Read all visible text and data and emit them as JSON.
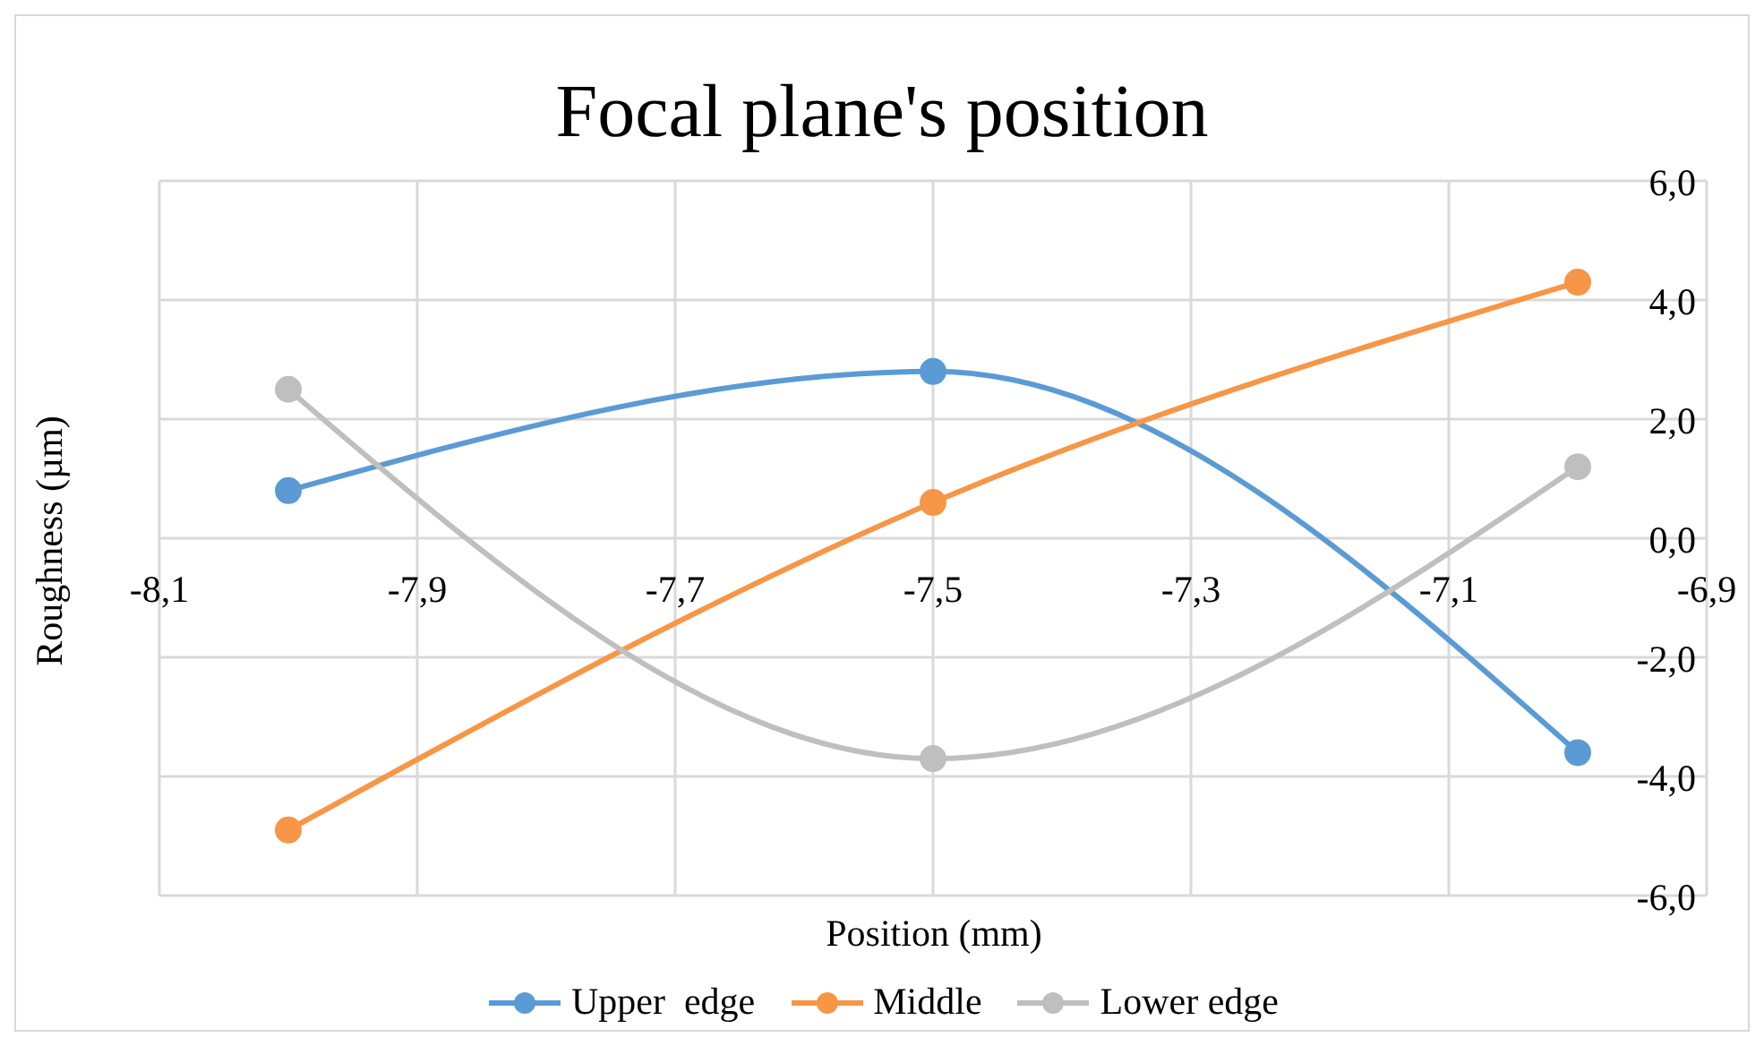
{
  "chart_data": {
    "type": "line",
    "title": "Focal plane's position",
    "xlabel": "Position (mm)",
    "ylabel": "Roughness (µm)",
    "x": [
      -8.0,
      -7.5,
      -7.0
    ],
    "series": [
      {
        "name": "Upper  edge",
        "color": "#5b9bd5",
        "values": [
          0.8,
          2.8,
          -3.6
        ]
      },
      {
        "name": "Middle",
        "color": "#f79646",
        "values": [
          -4.9,
          0.6,
          4.3
        ]
      },
      {
        "name": "Lower edge",
        "color": "#bfbfbf",
        "values": [
          2.5,
          -3.7,
          1.2
        ]
      }
    ],
    "xlim": [
      -8.1,
      -6.9
    ],
    "xticks": [
      {
        "value": -8.1,
        "label": "-8,1"
      },
      {
        "value": -7.9,
        "label": "-7,9"
      },
      {
        "value": -7.7,
        "label": "-7,7"
      },
      {
        "value": -7.5,
        "label": "-7,5"
      },
      {
        "value": -7.3,
        "label": "-7,3"
      },
      {
        "value": -7.1,
        "label": "-7,1"
      },
      {
        "value": -6.9,
        "label": "-6,9"
      }
    ],
    "ylim": [
      -6,
      6
    ],
    "yticks": [
      {
        "value": -6,
        "label": "-6,0"
      },
      {
        "value": -4,
        "label": "-4,0"
      },
      {
        "value": -2,
        "label": "-2,0"
      },
      {
        "value": 0,
        "label": "0,0"
      },
      {
        "value": 2,
        "label": "2,0"
      },
      {
        "value": 4,
        "label": "4,0"
      },
      {
        "value": 6,
        "label": "6,0"
      }
    ],
    "grid": true,
    "legend": "bottom",
    "marker": "circle",
    "line_style": "solid"
  }
}
